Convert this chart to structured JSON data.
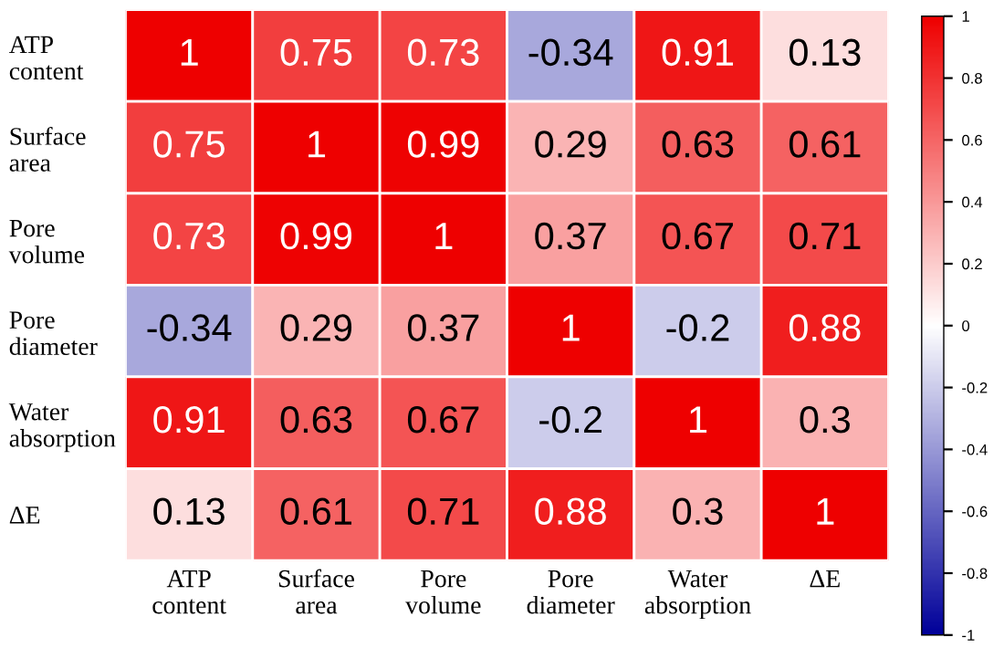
{
  "chart_data": {
    "type": "heatmap",
    "categories": [
      "ATP\ncontent",
      "Surface\narea",
      "Pore\nvolume",
      "Pore\ndiameter",
      "Water\nabsorption",
      "ΔE"
    ],
    "y_categories": [
      "ATP\ncontent",
      "Surface\narea",
      "Pore\nvolume",
      "Pore\ndiameter",
      "Water\nabsorption",
      "ΔE"
    ],
    "cells": [
      [
        1,
        0.75,
        0.73,
        -0.34,
        0.91,
        0.13
      ],
      [
        0.75,
        1,
        0.99,
        0.29,
        0.63,
        0.61
      ],
      [
        0.73,
        0.99,
        1,
        0.37,
        0.67,
        0.71
      ],
      [
        -0.34,
        0.29,
        0.37,
        1,
        -0.2,
        0.88
      ],
      [
        0.91,
        0.63,
        0.67,
        -0.2,
        1,
        0.3
      ],
      [
        0.13,
        0.61,
        0.71,
        0.88,
        0.3,
        1
      ]
    ],
    "colors": [
      "#000099",
      "#ffffff",
      "#ee0000"
    ],
    "clim": [
      -1,
      1
    ],
    "cticks": [
      1,
      0.8,
      0.6,
      0.4,
      0.2,
      0,
      -0.2,
      -0.4,
      -0.6,
      -0.8,
      -1
    ],
    "data_labels": true
  }
}
